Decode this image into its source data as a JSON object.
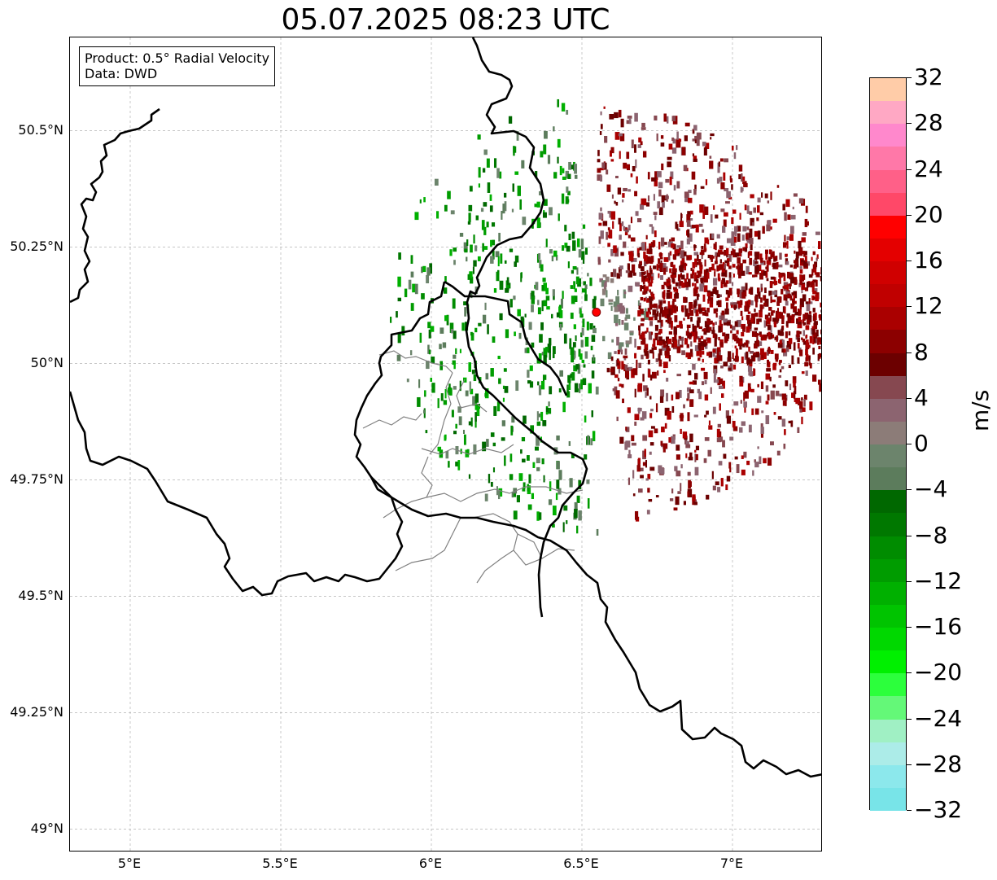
{
  "title": "05.07.2025 08:23 UTC",
  "info_box": {
    "product": "Product: 0.5° Radial Velocity",
    "data_source": "Data: DWD"
  },
  "map": {
    "projection": "lat/lon",
    "lon_range": [
      4.8,
      7.3
    ],
    "lat_range": [
      48.95,
      50.7
    ],
    "gridlines": true,
    "lat_labels": [
      "50.5°N",
      "50.25°N",
      "50°N",
      "49.75°N",
      "49.5°N",
      "49.25°N",
      "49°N"
    ],
    "lat_values": [
      50.5,
      50.25,
      50.0,
      49.75,
      49.5,
      49.25,
      49.0
    ],
    "lon_labels": [
      "5°E",
      "5.5°E",
      "6°E",
      "6.5°E",
      "7°E"
    ],
    "lon_values": [
      5.0,
      5.5,
      6.0,
      6.5,
      7.0
    ],
    "radar_site": {
      "lon": 6.548,
      "lat": 50.11,
      "color": "#ff0000"
    },
    "layers": [
      "national-borders",
      "luxembourg-cantons",
      "radial-velocity-echoes"
    ]
  },
  "colorbar": {
    "unit": "m/s",
    "min": -32,
    "max": 32,
    "tick_labels": [
      "32",
      "28",
      "24",
      "20",
      "16",
      "12",
      "8",
      "4",
      "0",
      "−4",
      "−8",
      "−12",
      "−16",
      "−20",
      "−24",
      "−28",
      "−32"
    ],
    "tick_values": [
      32,
      28,
      24,
      20,
      16,
      12,
      8,
      4,
      0,
      -4,
      -8,
      -12,
      -16,
      -20,
      -24,
      -28,
      -32
    ],
    "colors_top_to_bottom": [
      "#ffcca8",
      "#ffa8c4",
      "#ff88cc",
      "#ff78a8",
      "#ff6088",
      "#ff4868",
      "#ff0000",
      "#e40000",
      "#d00000",
      "#c00000",
      "#aa0000",
      "#8c0000",
      "#6c0000",
      "#864850",
      "#8c6470",
      "#8c7c78",
      "#6c846c",
      "#5c7c5c",
      "#006800",
      "#007800",
      "#008c00",
      "#009c00",
      "#00b000",
      "#00c400",
      "#00d800",
      "#00f000",
      "#2cff3c",
      "#64f878",
      "#a0f0c4",
      "#acece8",
      "#8ce8ec",
      "#78e4e8"
    ]
  }
}
